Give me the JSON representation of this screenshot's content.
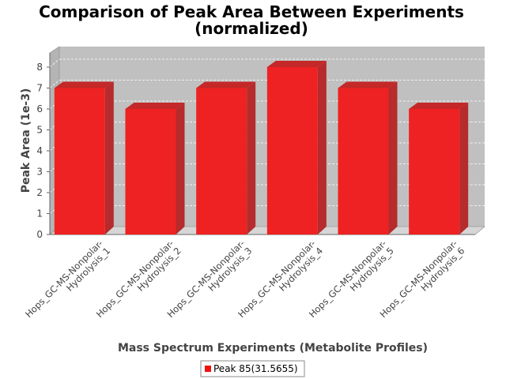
{
  "chart_data": {
    "type": "bar",
    "title_line1": "Comparison of Peak Area Between Experiments",
    "title_line2": "(normalized)",
    "xlabel": "Mass Spectrum Experiments (Metabolite Profiles)",
    "ylabel": "Peak Area (1e-3)",
    "categories": [
      [
        "Hops_GC-MS-Nonpolar-",
        "Hydrolysis_1"
      ],
      [
        "Hops_GC-MS-Nonpolar-",
        "Hydrolysis_2"
      ],
      [
        "Hops_GC-MS-Nonpolar-",
        "Hydrolysis_3"
      ],
      [
        "Hops_GC-MS-Nonpolar-",
        "Hydrolysis_4"
      ],
      [
        "Hops_GC-MS-Nonpolar-",
        "Hydrolysis_5"
      ],
      [
        "Hops_GC-MS-Nonpolar-",
        "Hydrolysis_6"
      ]
    ],
    "series": [
      {
        "name": "Peak 85(31.5655)",
        "values": [
          7,
          6,
          7,
          8,
          7,
          6
        ],
        "color": "#ee2222"
      }
    ],
    "ylim": [
      0,
      8
    ],
    "yticks": [
      "0",
      "1",
      "2",
      "3",
      "4",
      "5",
      "6",
      "7",
      "8"
    ],
    "grid": true,
    "legend_position": "bottom",
    "plot_background": "#c0c0c0"
  }
}
